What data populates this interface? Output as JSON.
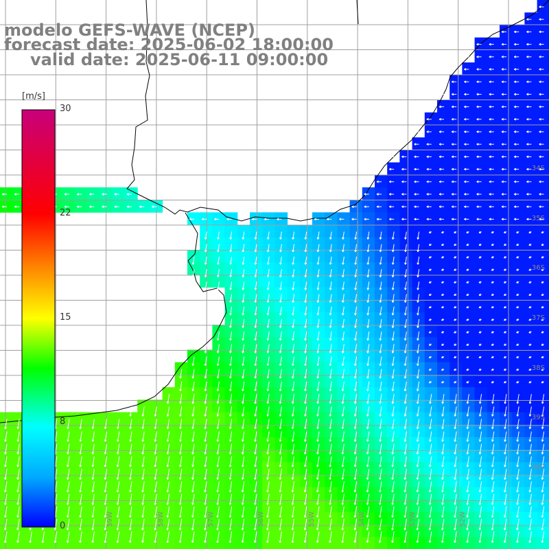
{
  "title": {
    "line1": "modelo GEFS-WAVE (NCEP)",
    "line2": "forecast date: 2025-06-02 18:00:00",
    "line3": "valid date: 2025-06-11 09:00:00"
  },
  "colorbar": {
    "units": "[m/s]",
    "ticks": [
      "30",
      "22",
      "15",
      "8",
      "0"
    ],
    "colors": [
      "#0000ff",
      "#00aaff",
      "#00ffff",
      "#00ff00",
      "#ffff00",
      "#ff8800",
      "#ff0000",
      "#c8007a"
    ]
  },
  "lat_labels": [
    "34S",
    "35S",
    "36S",
    "37S",
    "38S",
    "39S",
    "40S"
  ],
  "lon_labels": [
    "59W",
    "58W",
    "57W",
    "56W",
    "55W",
    "54W",
    "53W",
    "52W"
  ],
  "colors": {
    "land": "#ffffff",
    "grid": "#a0a0a0",
    "coast": "#000000",
    "arrow": "#ffffff"
  }
}
